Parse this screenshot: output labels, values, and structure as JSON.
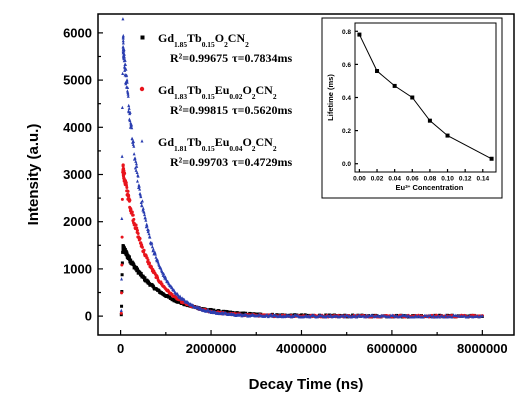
{
  "chart_data": [
    {
      "type": "scatter",
      "xlabel": "Decay Time (ns)",
      "ylabel": "Intensity (a.u.)",
      "xlim": [
        -500000,
        8700000
      ],
      "ylim": [
        -400,
        6400
      ],
      "xticks": [
        "0",
        "2000000",
        "4000000",
        "6000000",
        "8000000"
      ],
      "xtick_values": [
        0,
        2000000,
        4000000,
        6000000,
        8000000
      ],
      "yticks": [
        "0",
        "1000",
        "2000",
        "3000",
        "4000",
        "5000",
        "6000"
      ],
      "ytick_values": [
        0,
        1000,
        2000,
        3000,
        4000,
        5000,
        6000
      ],
      "series": [
        {
          "name_parts": [
            [
              "Gd",
              ""
            ],
            [
              "1.85",
              "sub"
            ],
            [
              "Tb",
              ""
            ],
            [
              "0.15",
              "sub"
            ],
            [
              "O",
              ""
            ],
            [
              "2",
              "sub"
            ],
            [
              "CN",
              ""
            ],
            [
              "2",
              "sub"
            ]
          ],
          "r2": "R²=0.99675",
          "tau": "τ=0.7834ms",
          "color": "#000000",
          "marker": "square",
          "peak": 1450,
          "tau_ns": 783400,
          "x_max": 8000000
        },
        {
          "name_parts": [
            [
              "Gd",
              ""
            ],
            [
              "1.83",
              "sub"
            ],
            [
              "Tb",
              ""
            ],
            [
              "0.15",
              "sub"
            ],
            [
              "Eu",
              ""
            ],
            [
              "0.02",
              "sub"
            ],
            [
              "O",
              ""
            ],
            [
              "2",
              "sub"
            ],
            [
              "CN",
              ""
            ],
            [
              "2",
              "sub"
            ]
          ],
          "r2": "R²=0.99815",
          "tau": "τ=0.5620ms",
          "color": "#e8141c",
          "marker": "circle",
          "peak": 3100,
          "tau_ns": 562000,
          "x_max": 8000000
        },
        {
          "name_parts": [
            [
              "Gd",
              ""
            ],
            [
              "1.81",
              "sub"
            ],
            [
              "Tb",
              ""
            ],
            [
              "0.15",
              "sub"
            ],
            [
              "Eu",
              ""
            ],
            [
              "0.04",
              "sub"
            ],
            [
              "O",
              ""
            ],
            [
              "2",
              "sub"
            ],
            [
              "CN",
              ""
            ],
            [
              "2",
              "sub"
            ]
          ],
          "r2": "R²=0.99703",
          "tau": "τ=0.4729ms",
          "color": "#2b3eb0",
          "marker": "triangle",
          "peak": 5800,
          "tau_ns": 472900,
          "x_max": 8000000
        }
      ],
      "legend_position": "top-left",
      "grid": false
    },
    {
      "type": "line",
      "inset": true,
      "xlabel_parts": [
        [
          "Eu",
          ""
        ],
        [
          "3+",
          "sup"
        ],
        [
          " Concentration",
          ""
        ]
      ],
      "ylabel": "Lifetime (ms)",
      "x": [
        0.0,
        0.02,
        0.04,
        0.06,
        0.08,
        0.1,
        0.15
      ],
      "values": [
        0.78,
        0.56,
        0.47,
        0.4,
        0.26,
        0.17,
        0.03
      ],
      "xlim": [
        -0.005,
        0.155
      ],
      "ylim": [
        -0.05,
        0.85
      ],
      "xticks": [
        "0.00",
        "0.02",
        "0.04",
        "0.06",
        "0.08",
        "0.10",
        "0.12",
        "0.14"
      ],
      "xtick_values": [
        0.0,
        0.02,
        0.04,
        0.06,
        0.08,
        0.1,
        0.12,
        0.14
      ],
      "yticks": [
        "0.0",
        "0.2",
        "0.4",
        "0.6",
        "0.8"
      ],
      "ytick_values": [
        0.0,
        0.2,
        0.4,
        0.6,
        0.8
      ],
      "color": "#000000",
      "marker": "square"
    }
  ]
}
